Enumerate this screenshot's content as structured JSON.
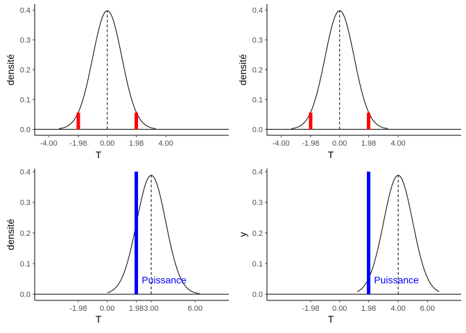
{
  "colors": {
    "axis": "#000000",
    "tick_text": "#4d4d4d",
    "critical": "#ff0000",
    "power": "#0000ff",
    "curve": "#000000"
  },
  "chart_data": [
    {
      "type": "line",
      "panel": "top-left",
      "title": "",
      "xlabel": "T",
      "ylabel": "densité",
      "xlim": [
        -4.96,
        8.3
      ],
      "ylim": [
        -0.02,
        0.42
      ],
      "xticks": [
        -4,
        -1.98,
        0,
        1.98,
        4
      ],
      "xtick_labels": [
        "-4.00",
        "-1.98",
        "0.00",
        "1.98",
        "4.00"
      ],
      "yticks": [
        0,
        0.1,
        0.2,
        0.3,
        0.4
      ],
      "ytick_labels": [
        "0.0",
        "0.1",
        "0.2",
        "0.3",
        "0.4"
      ],
      "curve": {
        "distribution": "t",
        "df": 100,
        "ncp": 0,
        "x_range": [
          -3.3,
          3.3
        ]
      },
      "mean_line_x": 0,
      "critical_bars": [
        {
          "x": -1.98,
          "height": 0.056
        },
        {
          "x": 1.98,
          "height": 0.056
        }
      ],
      "power_bar": null,
      "annotation": null
    },
    {
      "type": "line",
      "panel": "top-right",
      "title": "",
      "xlabel": "T",
      "ylabel": "densité",
      "xlim": [
        -4.96,
        8.3
      ],
      "ylim": [
        -0.02,
        0.42
      ],
      "xticks": [
        -4,
        -1.98,
        0,
        1.98,
        4
      ],
      "xtick_labels": [
        "-4.00",
        "-1.98",
        "0.00",
        "1.98",
        "4.00"
      ],
      "yticks": [
        0,
        0.1,
        0.2,
        0.3,
        0.4
      ],
      "ytick_labels": [
        "0.0",
        "0.1",
        "0.2",
        "0.3",
        "0.4"
      ],
      "curve": {
        "distribution": "t",
        "df": 100,
        "ncp": 0,
        "x_range": [
          -3.3,
          3.3
        ]
      },
      "mean_line_x": 0,
      "critical_bars": [
        {
          "x": -1.98,
          "height": 0.056
        },
        {
          "x": 1.98,
          "height": 0.056
        }
      ],
      "power_bar": null,
      "annotation": null
    },
    {
      "type": "line",
      "panel": "bottom-left",
      "title": "",
      "xlabel": "T",
      "ylabel": "densité",
      "xlim": [
        -4.96,
        8.3
      ],
      "ylim": [
        -0.02,
        0.41
      ],
      "xticks": [
        -1.98,
        0,
        1.98,
        3,
        6
      ],
      "xtick_labels": [
        "-1.98",
        "0.00",
        "1.98",
        "3.00",
        "6.00"
      ],
      "yticks": [
        0,
        0.1,
        0.2,
        0.3,
        0.4
      ],
      "ytick_labels": [
        "0.0",
        "0.1",
        "0.2",
        "0.3",
        "0.4"
      ],
      "curve": {
        "distribution": "t",
        "df": 100,
        "ncp": 3,
        "x_range": [
          0,
          6.3
        ]
      },
      "mean_line_x": 3,
      "critical_bars": [],
      "power_bar": {
        "x": 1.98,
        "height": 0.4
      },
      "annotation": {
        "text": "Puissance",
        "x": 2.35,
        "y": 0.047
      }
    },
    {
      "type": "line",
      "panel": "bottom-right",
      "title": "",
      "xlabel": "T",
      "ylabel": "y",
      "xlim": [
        -4.96,
        8.3
      ],
      "ylim": [
        -0.02,
        0.41
      ],
      "xticks": [
        -1.98,
        0,
        1.98,
        4,
        6
      ],
      "xtick_labels": [
        "-1.98",
        "0.00",
        "1.98",
        "4.00",
        "6.00"
      ],
      "yticks": [
        0,
        0.1,
        0.2,
        0.3,
        0.4
      ],
      "ytick_labels": [
        "0.0",
        "0.1",
        "0.2",
        "0.3",
        "0.4"
      ],
      "curve": {
        "distribution": "t",
        "df": 100,
        "ncp": 4,
        "x_range": [
          1.2,
          6.8
        ]
      },
      "mean_line_x": 4,
      "critical_bars": [],
      "power_bar": {
        "x": 1.98,
        "height": 0.4
      },
      "annotation": {
        "text": "Puissance",
        "x": 2.35,
        "y": 0.047
      }
    }
  ]
}
